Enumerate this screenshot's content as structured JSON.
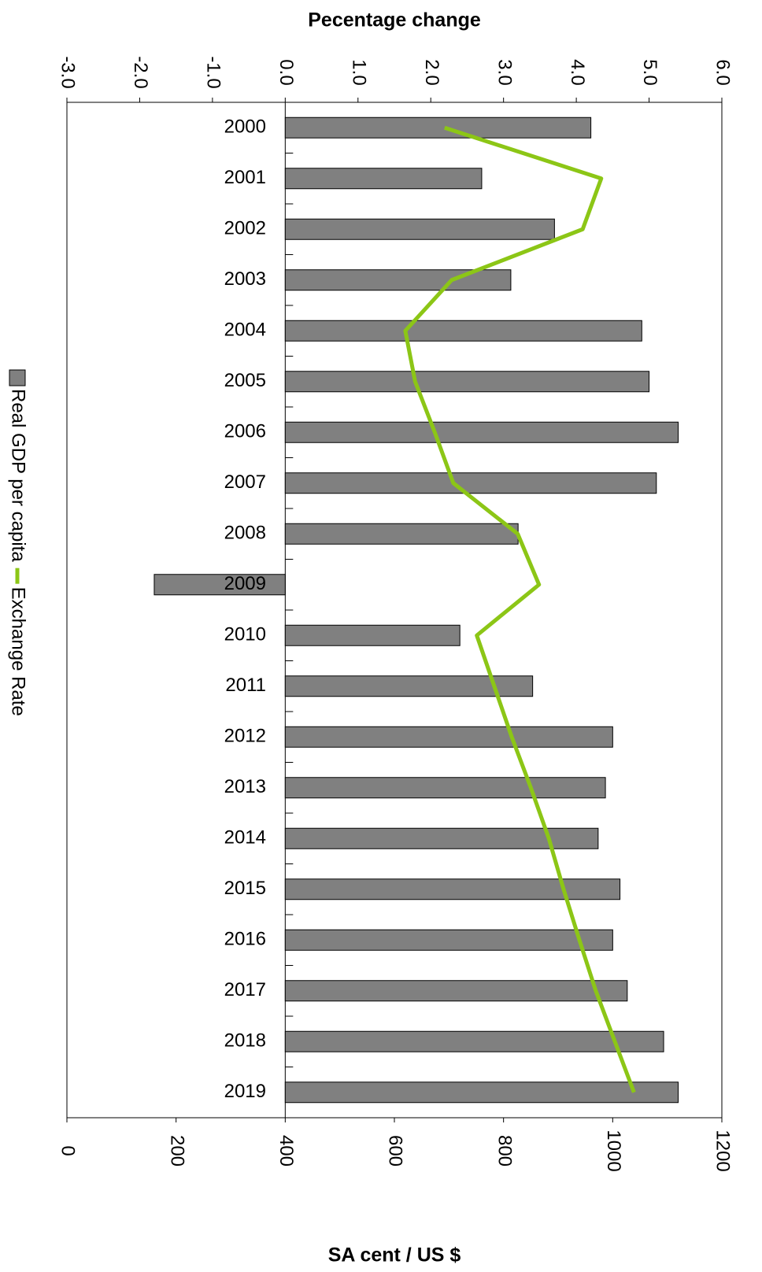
{
  "chart_data": {
    "type": "bar-line",
    "x_label": "Pecentage change",
    "x2_label": "SA cent / US $",
    "categories": [
      "2000",
      "2001",
      "2002",
      "2003",
      "2004",
      "2005",
      "2006",
      "2007",
      "2008",
      "2009",
      "2010",
      "2011",
      "2012",
      "2013",
      "2014",
      "2015",
      "2016",
      "2017",
      "2018",
      "2019"
    ],
    "series": [
      {
        "name": "Real GDP per capita",
        "type": "bar",
        "color": "#808080",
        "axis": "x",
        "values": [
          4.2,
          2.7,
          3.7,
          3.1,
          4.9,
          5.0,
          5.4,
          5.1,
          3.2,
          -1.8,
          2.4,
          3.4,
          4.5,
          4.4,
          4.3,
          4.6,
          4.5,
          4.7,
          5.2,
          5.4
        ]
      },
      {
        "name": "Exchange Rate",
        "type": "line",
        "color": "#8cc616",
        "axis": "x2",
        "values": [
          692,
          979,
          945,
          705,
          620,
          638,
          674,
          708,
          826,
          865,
          751,
          783,
          815,
          850,
          883,
          910,
          939,
          969,
          1004,
          1039
        ]
      }
    ],
    "xlim": [
      -3,
      6
    ],
    "xticks": [
      {
        "value": -3,
        "label": "-3.0"
      },
      {
        "value": -2,
        "label": "-2.0"
      },
      {
        "value": -1,
        "label": "-1.0"
      },
      {
        "value": 0,
        "label": "0.0"
      },
      {
        "value": 1,
        "label": "1.0"
      },
      {
        "value": 2,
        "label": "2.0"
      },
      {
        "value": 3,
        "label": "3.0"
      },
      {
        "value": 4,
        "label": "4.0"
      },
      {
        "value": 5,
        "label": "5.0"
      },
      {
        "value": 6,
        "label": "6.0"
      }
    ],
    "x2lim": [
      0,
      1200
    ],
    "x2ticks": [
      0,
      200,
      400,
      600,
      800,
      1000,
      1200
    ],
    "grid": false
  }
}
